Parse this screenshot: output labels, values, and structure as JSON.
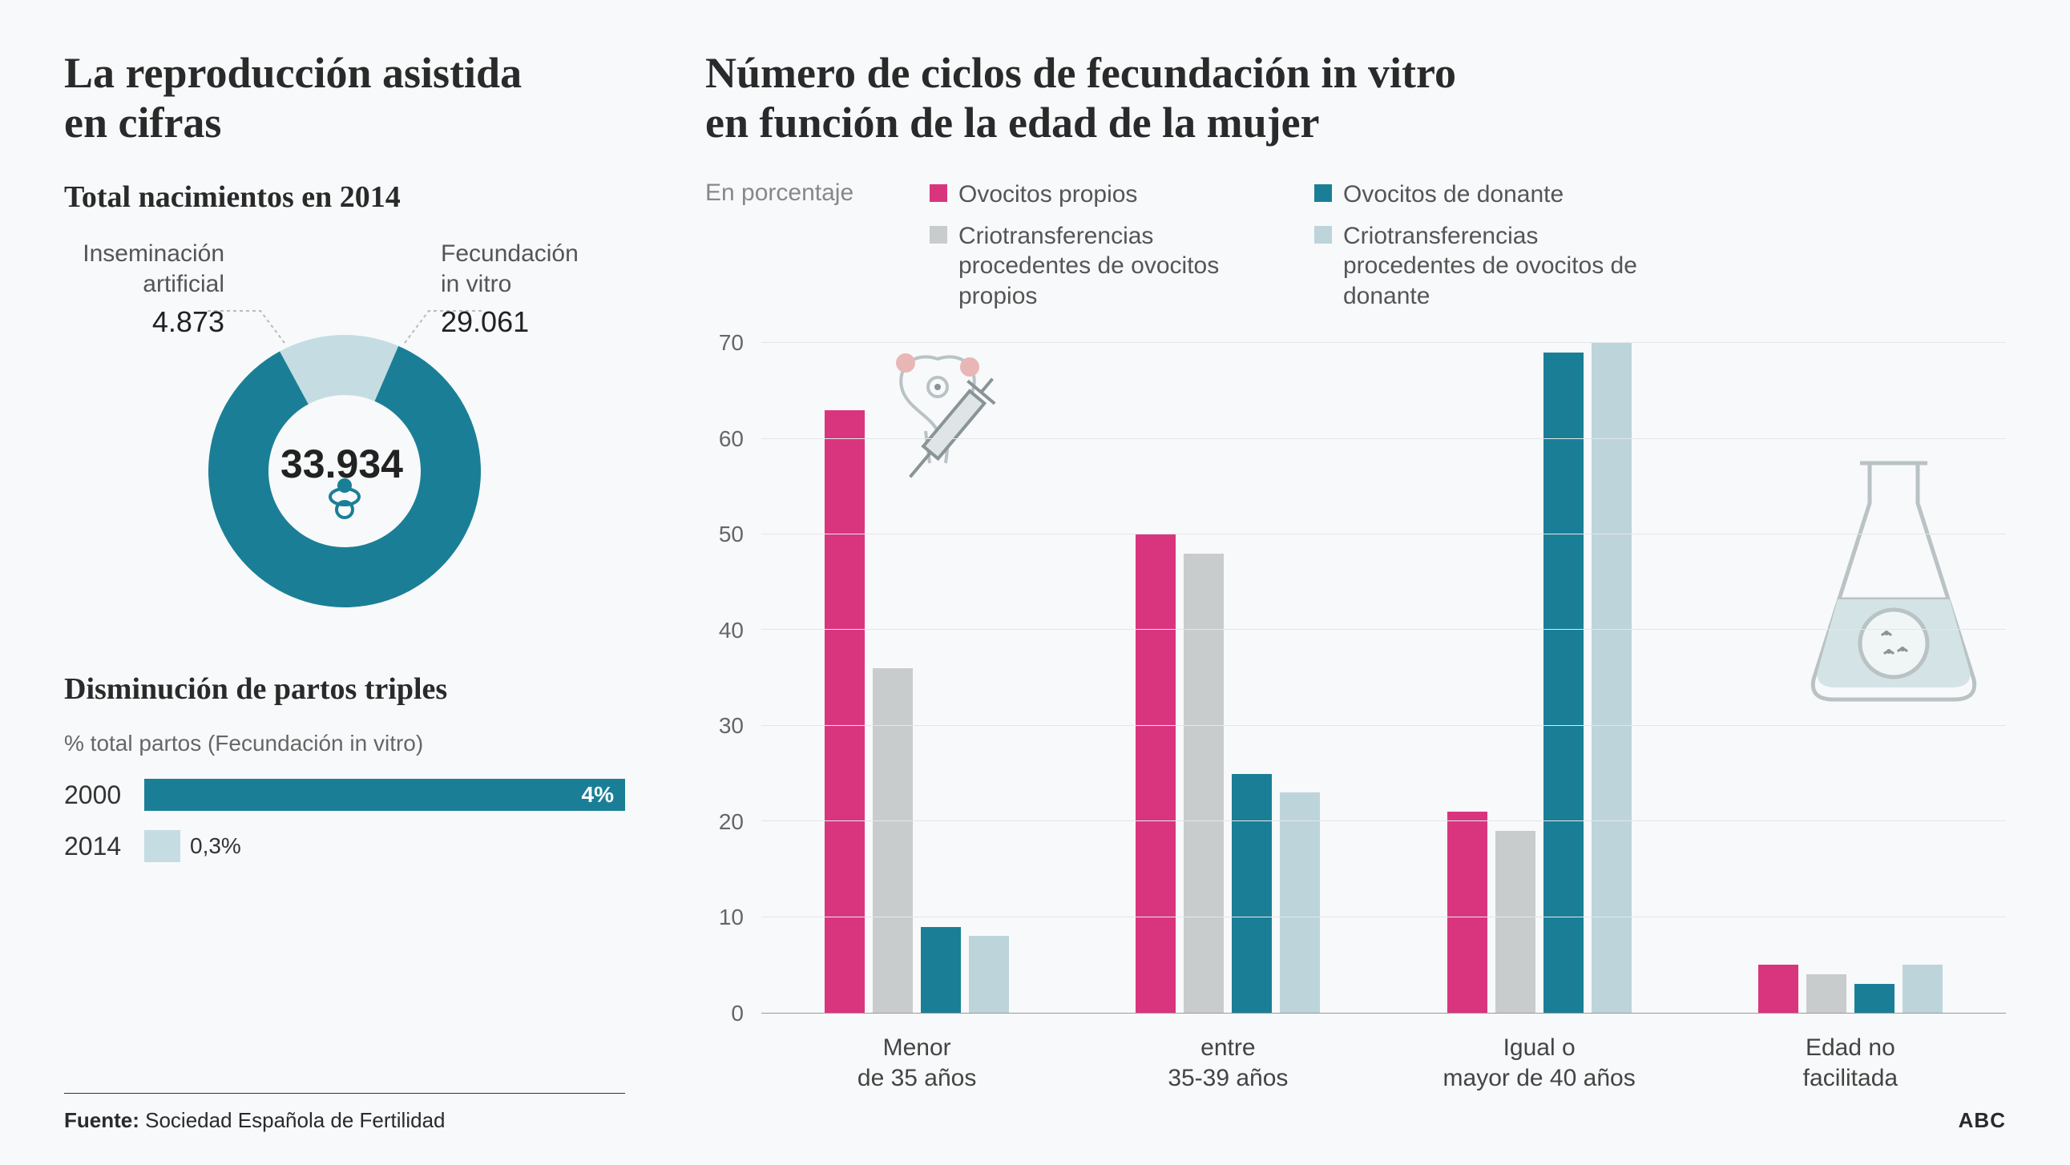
{
  "colors": {
    "background": "#f7f9fa",
    "teal": "#1a7f96",
    "pale_teal": "#c5dde2",
    "magenta": "#d9357f",
    "grey_bar": "#c9cccd",
    "light_blue_bar": "#bdd4da",
    "text_dark": "#2a2a2a",
    "text_muted": "#666666",
    "grid": "#e3e7e9",
    "axis": "#999999"
  },
  "left": {
    "title_line1": "La reproducción asistida",
    "title_line2": "en cifras",
    "births_title": "Total nacimientos en 2014",
    "donut": {
      "total": "33.934",
      "slices": [
        {
          "label_line1": "Inseminación",
          "label_line2": "artificial",
          "value_label": "4.873",
          "value_num": 4873,
          "color": "#c5dde2"
        },
        {
          "label_line1": "Fecundación",
          "label_line2": "in vitro",
          "value_label": "29.061",
          "value_num": 29061,
          "color": "#1a7f96"
        }
      ]
    },
    "triples": {
      "title": "Disminución de partos triples",
      "note": "% total partos (Fecundación in vitro)",
      "rows": [
        {
          "year": "2000",
          "value_pct": 4.0,
          "value_label": "4%",
          "color": "#1a7f96",
          "label_inside": true
        },
        {
          "year": "2014",
          "value_pct": 0.3,
          "value_label": "0,3%",
          "color": "#c5dde2",
          "label_inside": false
        }
      ],
      "max_pct": 4.0
    }
  },
  "right": {
    "title_line1": "Número de ciclos de fecundación in vitro",
    "title_line2": "en función de la edad de la mujer",
    "unit_label": "En porcentaje",
    "legend": [
      {
        "label": "Ovocitos propios",
        "color": "#d9357f"
      },
      {
        "label": "Criotransferencias procedentes  de ovocitos propios",
        "color": "#c9cccd"
      },
      {
        "label": "Ovocitos de donante",
        "color": "#1a7f96"
      },
      {
        "label": "Criotransferencias procedentes de ovocitos de donante",
        "color": "#bdd4da"
      }
    ],
    "chart": {
      "ylim": [
        0,
        70
      ],
      "ytick_step": 10,
      "categories": [
        {
          "label_line1": "Menor",
          "label_line2": "de 35 años"
        },
        {
          "label_line1": "entre",
          "label_line2": "35-39 años"
        },
        {
          "label_line1": "Igual o",
          "label_line2": "mayor de 40 años"
        },
        {
          "label_line1": "Edad no",
          "label_line2": "facilitada"
        }
      ],
      "series": [
        {
          "key": "ovocitos_propios",
          "color": "#d9357f",
          "values": [
            63,
            50,
            21,
            5
          ]
        },
        {
          "key": "crio_propios",
          "color": "#c9cccd",
          "values": [
            36,
            48,
            19,
            4
          ]
        },
        {
          "key": "ovocitos_donante",
          "color": "#1a7f96",
          "values": [
            9,
            25,
            69,
            3
          ]
        },
        {
          "key": "crio_donante",
          "color": "#bdd4da",
          "values": [
            8,
            23,
            70,
            5
          ]
        }
      ]
    }
  },
  "footer": {
    "source_label": "Fuente:",
    "source_name": "Sociedad Española de Fertilidad",
    "brand": "ABC"
  }
}
